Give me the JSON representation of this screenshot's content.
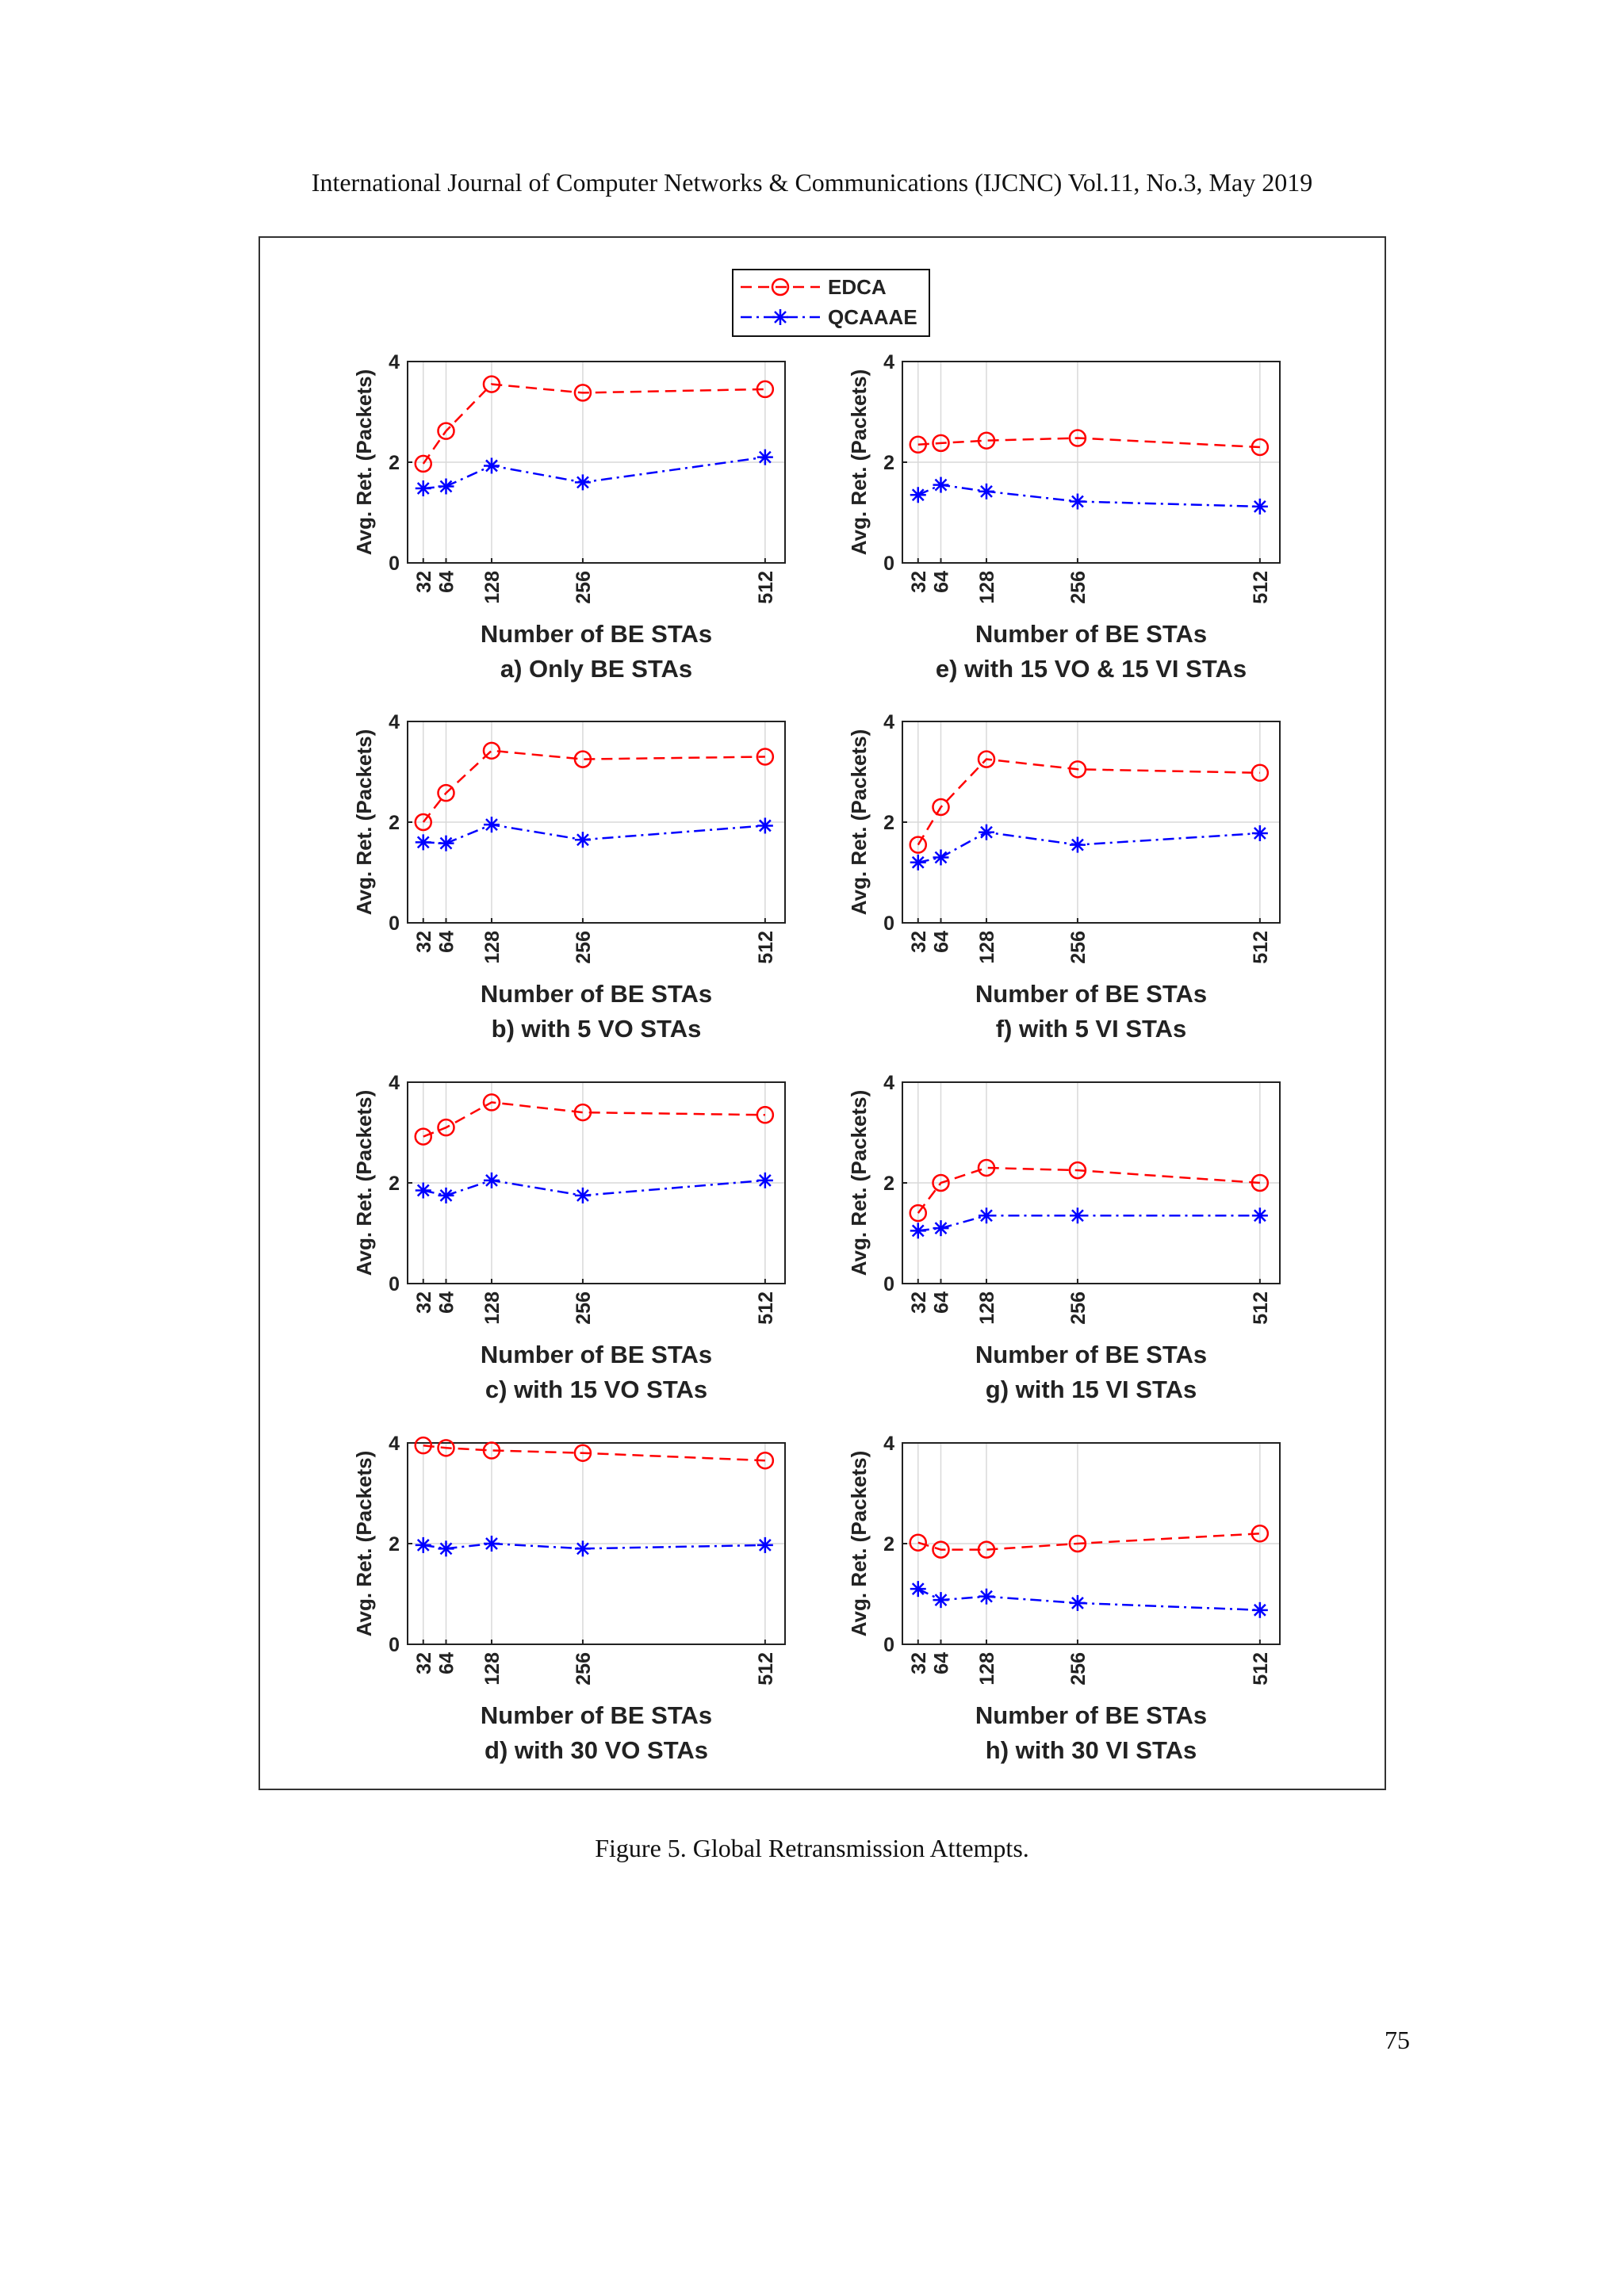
{
  "header": {
    "text": "International Journal of Computer Networks & Communications (IJCNC) Vol.11, No.3, May 2019"
  },
  "legend": {
    "entries": [
      {
        "name": "EDCA",
        "color": "#ff0000",
        "marker": "circle",
        "dash": "dashed"
      },
      {
        "name": "QCAAAE",
        "color": "#0000ff",
        "marker": "asterisk",
        "dash": "dash-dot"
      }
    ]
  },
  "chart_data": [
    {
      "type": "line",
      "title": "a) Only BE STAs",
      "xlabel": "Number of BE STAs",
      "ylabel": "Avg. Ret. (Packets)",
      "x": [
        32,
        64,
        128,
        256,
        512
      ],
      "xlim": [
        10,
        540
      ],
      "ylim": [
        0,
        4
      ],
      "xticks": [
        "32",
        "64",
        "128",
        "256",
        "512"
      ],
      "yticks": [
        "0",
        "2",
        "4"
      ],
      "grid": true,
      "series": [
        {
          "name": "EDCA",
          "values": [
            1.97,
            2.62,
            3.55,
            3.38,
            3.45
          ]
        },
        {
          "name": "QCAAAE",
          "values": [
            1.48,
            1.52,
            1.93,
            1.6,
            2.1
          ]
        }
      ]
    },
    {
      "type": "line",
      "title": "b) with 5 VO STAs",
      "xlabel": "Number of BE STAs",
      "ylabel": "Avg. Ret. (Packets)",
      "x": [
        32,
        64,
        128,
        256,
        512
      ],
      "xlim": [
        10,
        540
      ],
      "ylim": [
        0,
        4
      ],
      "xticks": [
        "32",
        "64",
        "128",
        "256",
        "512"
      ],
      "yticks": [
        "0",
        "2",
        "4"
      ],
      "grid": true,
      "series": [
        {
          "name": "EDCA",
          "values": [
            2.0,
            2.58,
            3.42,
            3.25,
            3.3
          ]
        },
        {
          "name": "QCAAAE",
          "values": [
            1.6,
            1.58,
            1.95,
            1.65,
            1.93
          ]
        }
      ]
    },
    {
      "type": "line",
      "title": "c) with 15 VO STAs",
      "xlabel": "Number of BE STAs",
      "ylabel": "Avg. Ret. (Packets)",
      "x": [
        32,
        64,
        128,
        256,
        512
      ],
      "xlim": [
        10,
        540
      ],
      "ylim": [
        0,
        4
      ],
      "xticks": [
        "32",
        "64",
        "128",
        "256",
        "512"
      ],
      "yticks": [
        "0",
        "2",
        "4"
      ],
      "grid": true,
      "series": [
        {
          "name": "EDCA",
          "values": [
            2.92,
            3.1,
            3.6,
            3.4,
            3.35
          ]
        },
        {
          "name": "QCAAAE",
          "values": [
            1.85,
            1.75,
            2.05,
            1.75,
            2.05
          ]
        }
      ]
    },
    {
      "type": "line",
      "title": "d) with 30 VO STAs",
      "xlabel": "Number of BE STAs",
      "ylabel": "Avg. Ret. (Packets)",
      "x": [
        32,
        64,
        128,
        256,
        512
      ],
      "xlim": [
        10,
        540
      ],
      "ylim": [
        0,
        4
      ],
      "xticks": [
        "32",
        "64",
        "128",
        "256",
        "512"
      ],
      "yticks": [
        "0",
        "2",
        "4"
      ],
      "grid": true,
      "series": [
        {
          "name": "EDCA",
          "values": [
            3.95,
            3.9,
            3.85,
            3.8,
            3.65
          ]
        },
        {
          "name": "QCAAAE",
          "values": [
            1.97,
            1.9,
            2.0,
            1.9,
            1.97
          ]
        }
      ]
    },
    {
      "type": "line",
      "title": "e) with 15 VO & 15 VI STAs",
      "xlabel": "Number of BE STAs",
      "ylabel": "Avg. Ret. (Packets)",
      "x": [
        32,
        64,
        128,
        256,
        512
      ],
      "xlim": [
        10,
        540
      ],
      "ylim": [
        0,
        4
      ],
      "xticks": [
        "32",
        "64",
        "128",
        "256",
        "512"
      ],
      "yticks": [
        "0",
        "2",
        "4"
      ],
      "grid": true,
      "series": [
        {
          "name": "EDCA",
          "values": [
            2.35,
            2.38,
            2.43,
            2.48,
            2.3
          ]
        },
        {
          "name": "QCAAAE",
          "values": [
            1.35,
            1.55,
            1.42,
            1.22,
            1.12
          ]
        }
      ]
    },
    {
      "type": "line",
      "title": "f) with 5 VI STAs",
      "xlabel": "Number of BE STAs",
      "ylabel": "Avg. Ret. (Packets)",
      "x": [
        32,
        64,
        128,
        256,
        512
      ],
      "xlim": [
        10,
        540
      ],
      "ylim": [
        0,
        4
      ],
      "xticks": [
        "32",
        "64",
        "128",
        "256",
        "512"
      ],
      "yticks": [
        "0",
        "2",
        "4"
      ],
      "grid": true,
      "series": [
        {
          "name": "EDCA",
          "values": [
            1.55,
            2.3,
            3.25,
            3.05,
            2.98
          ]
        },
        {
          "name": "QCAAAE",
          "values": [
            1.2,
            1.3,
            1.8,
            1.55,
            1.78
          ]
        }
      ]
    },
    {
      "type": "line",
      "title": "g) with 15 VI STAs",
      "xlabel": "Number of BE STAs",
      "ylabel": "Avg. Ret. (Packets)",
      "x": [
        32,
        64,
        128,
        256,
        512
      ],
      "xlim": [
        10,
        540
      ],
      "ylim": [
        0,
        4
      ],
      "xticks": [
        "32",
        "64",
        "128",
        "256",
        "512"
      ],
      "yticks": [
        "0",
        "2",
        "4"
      ],
      "grid": true,
      "series": [
        {
          "name": "EDCA",
          "values": [
            1.4,
            2.0,
            2.3,
            2.25,
            2.0
          ]
        },
        {
          "name": "QCAAAE",
          "values": [
            1.05,
            1.1,
            1.35,
            1.35,
            1.35
          ]
        }
      ]
    },
    {
      "type": "line",
      "title": "h) with 30 VI STAs",
      "xlabel": "Number of BE STAs",
      "ylabel": "Avg. Ret. (Packets)",
      "x": [
        32,
        64,
        128,
        256,
        512
      ],
      "xlim": [
        10,
        540
      ],
      "ylim": [
        0,
        4
      ],
      "xticks": [
        "32",
        "64",
        "128",
        "256",
        "512"
      ],
      "yticks": [
        "0",
        "2",
        "4"
      ],
      "grid": true,
      "series": [
        {
          "name": "EDCA",
          "values": [
            2.02,
            1.88,
            1.88,
            2.0,
            2.2
          ]
        },
        {
          "name": "QCAAAE",
          "values": [
            1.1,
            0.88,
            0.95,
            0.82,
            0.68
          ]
        }
      ]
    }
  ],
  "caption": {
    "text": "Figure 5. Global Retransmission Attempts."
  },
  "page_number": "75"
}
